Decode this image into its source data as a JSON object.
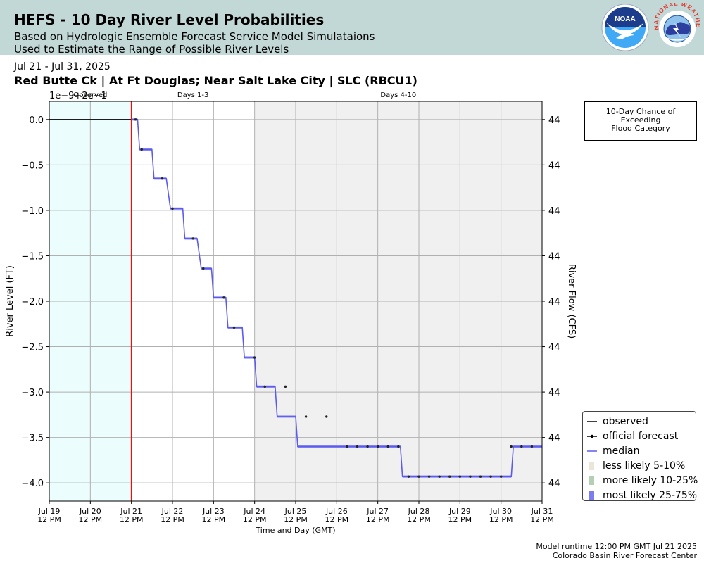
{
  "header": {
    "title": "HEFS - 10 Day River Level Probabilities",
    "subtitle1": "Based on Hydrologic Ensemble Forecast Service Model Simulataions",
    "subtitle2": "Used to Estimate the Range of Possible River Levels",
    "noaa_logo_text": "NOAA",
    "nws_logo_text": "NATIONAL WEATHER SERVICE"
  },
  "period": "Jul 21 - Jul 31, 2025",
  "location": "Red Butte Ck | At Ft Douglas; Near Salt Lake City | SLC (RBCU1)",
  "flood_box": {
    "line1": "10-Day Chance of",
    "line2": "Exceeding",
    "line3": "Flood Category"
  },
  "footer": {
    "line1": "Model runtime 12:00 PM GMT Jul 21 2025",
    "line2": "Colorado Basin River Forecast Center"
  },
  "colors": {
    "header_bg": "#c2d8d6",
    "observed_region": "#ebfdfc",
    "days_4_10_region": "#f0f0f0",
    "now_line": "#e81010",
    "median": "#5b5bf0",
    "band_5_10": "#ece6d8",
    "band_10_25": "#b4cfb4",
    "band_25_75": "#7b7bf2",
    "forecast_dots": "#222222"
  },
  "chart_data": {
    "type": "line",
    "xlabel": "Time and Day (GMT)",
    "ylabel": "River Level (FT)",
    "y2label": "River Flow (CFS)",
    "offset_text": "1e−9+2e−1",
    "ylim": [
      -4.2,
      0.2
    ],
    "yticks": [
      0.0,
      -0.5,
      -1.0,
      -1.5,
      -2.0,
      -2.5,
      -3.0,
      -3.5,
      -4.0
    ],
    "ytick_labels": [
      "0.0",
      "−0.5",
      "−1.0",
      "−1.5",
      "−2.0",
      "−2.5",
      "−3.0",
      "−3.5",
      "−4.0"
    ],
    "y2tick_labels": [
      "44",
      "44",
      "44",
      "44",
      "44",
      "44",
      "44",
      "44",
      "44"
    ],
    "xlim": [
      0,
      12
    ],
    "xticks": [
      0,
      1,
      2,
      3,
      4,
      5,
      6,
      7,
      8,
      9,
      10,
      11,
      12
    ],
    "xtick_labels": [
      [
        "Jul 19",
        "12 PM"
      ],
      [
        "Jul 20",
        "12 PM"
      ],
      [
        "Jul 21",
        "12 PM"
      ],
      [
        "Jul 22",
        "12 PM"
      ],
      [
        "Jul 23",
        "12 PM"
      ],
      [
        "Jul 24",
        "12 PM"
      ],
      [
        "Jul 25",
        "12 PM"
      ],
      [
        "Jul 26",
        "12 PM"
      ],
      [
        "Jul 27",
        "12 PM"
      ],
      [
        "Jul 28",
        "12 PM"
      ],
      [
        "Jul 29",
        "12 PM"
      ],
      [
        "Jul 30",
        "12 PM"
      ],
      [
        "Jul 31",
        "12 PM"
      ]
    ],
    "grid": true,
    "regions": [
      {
        "label": "Observed",
        "x_start": 0,
        "x_end": 2
      },
      {
        "label": "Days 1-3",
        "x_start": 2,
        "x_end": 5
      },
      {
        "label": "Days 4-10",
        "x_start": 5,
        "x_end": 12
      }
    ],
    "now_x": 2,
    "observed": {
      "x": [
        0,
        2
      ],
      "y": [
        0,
        0
      ]
    },
    "median": {
      "x": [
        2.0,
        2.15,
        2.2,
        2.5,
        2.55,
        2.85,
        2.95,
        3.25,
        3.3,
        3.6,
        3.7,
        3.95,
        4.0,
        4.3,
        4.35,
        4.7,
        4.75,
        5.0,
        5.05,
        5.5,
        5.55,
        6.0,
        6.05,
        6.5,
        6.55,
        7.2,
        7.25,
        8.55,
        8.6,
        11.25,
        11.3,
        12.0
      ],
      "y": [
        0.0,
        0.0,
        -0.33,
        -0.33,
        -0.65,
        -0.65,
        -0.98,
        -0.98,
        -1.31,
        -1.31,
        -1.64,
        -1.64,
        -1.96,
        -1.96,
        -2.29,
        -2.29,
        -2.62,
        -2.62,
        -2.94,
        -2.94,
        -3.27,
        -3.27,
        -3.6,
        -3.6,
        -3.6,
        -3.6,
        -3.6,
        -3.6,
        -3.93,
        -3.93,
        -3.6,
        -3.6
      ]
    },
    "official_forecast": {
      "x": [
        2.1,
        2.25,
        2.75,
        3.0,
        3.5,
        3.75,
        4.25,
        4.5,
        5.0,
        5.25,
        5.75,
        6.25,
        6.75,
        7.25,
        7.5,
        7.75,
        8.0,
        8.25,
        8.5,
        8.75,
        9.0,
        9.25,
        9.5,
        9.75,
        10.0,
        10.25,
        10.5,
        10.75,
        11.0,
        11.25,
        11.5,
        11.75
      ],
      "y": [
        0.0,
        -0.33,
        -0.65,
        -0.98,
        -1.31,
        -1.64,
        -1.96,
        -2.29,
        -2.62,
        -2.94,
        -2.94,
        -3.27,
        -3.27,
        -3.6,
        -3.6,
        -3.6,
        -3.6,
        -3.6,
        -3.6,
        -3.93,
        -3.93,
        -3.93,
        -3.93,
        -3.93,
        -3.93,
        -3.93,
        -3.93,
        -3.93,
        -3.93,
        -3.6,
        -3.6,
        -3.6
      ]
    },
    "legend": [
      {
        "label": "observed",
        "kind": "line",
        "color": "#000000"
      },
      {
        "label": "official forecast",
        "kind": "line-dot",
        "color": "#000000"
      },
      {
        "label": "median",
        "kind": "line",
        "color": "#5b5bf0"
      },
      {
        "label": "less likely 5-10%",
        "kind": "patch",
        "color": "#ece6d8"
      },
      {
        "label": "more likely 10-25%",
        "kind": "patch",
        "color": "#b4cfb4"
      },
      {
        "label": "most likely 25-75%",
        "kind": "patch",
        "color": "#7b7bf2"
      }
    ],
    "legend_position": "lower-right-outside"
  }
}
